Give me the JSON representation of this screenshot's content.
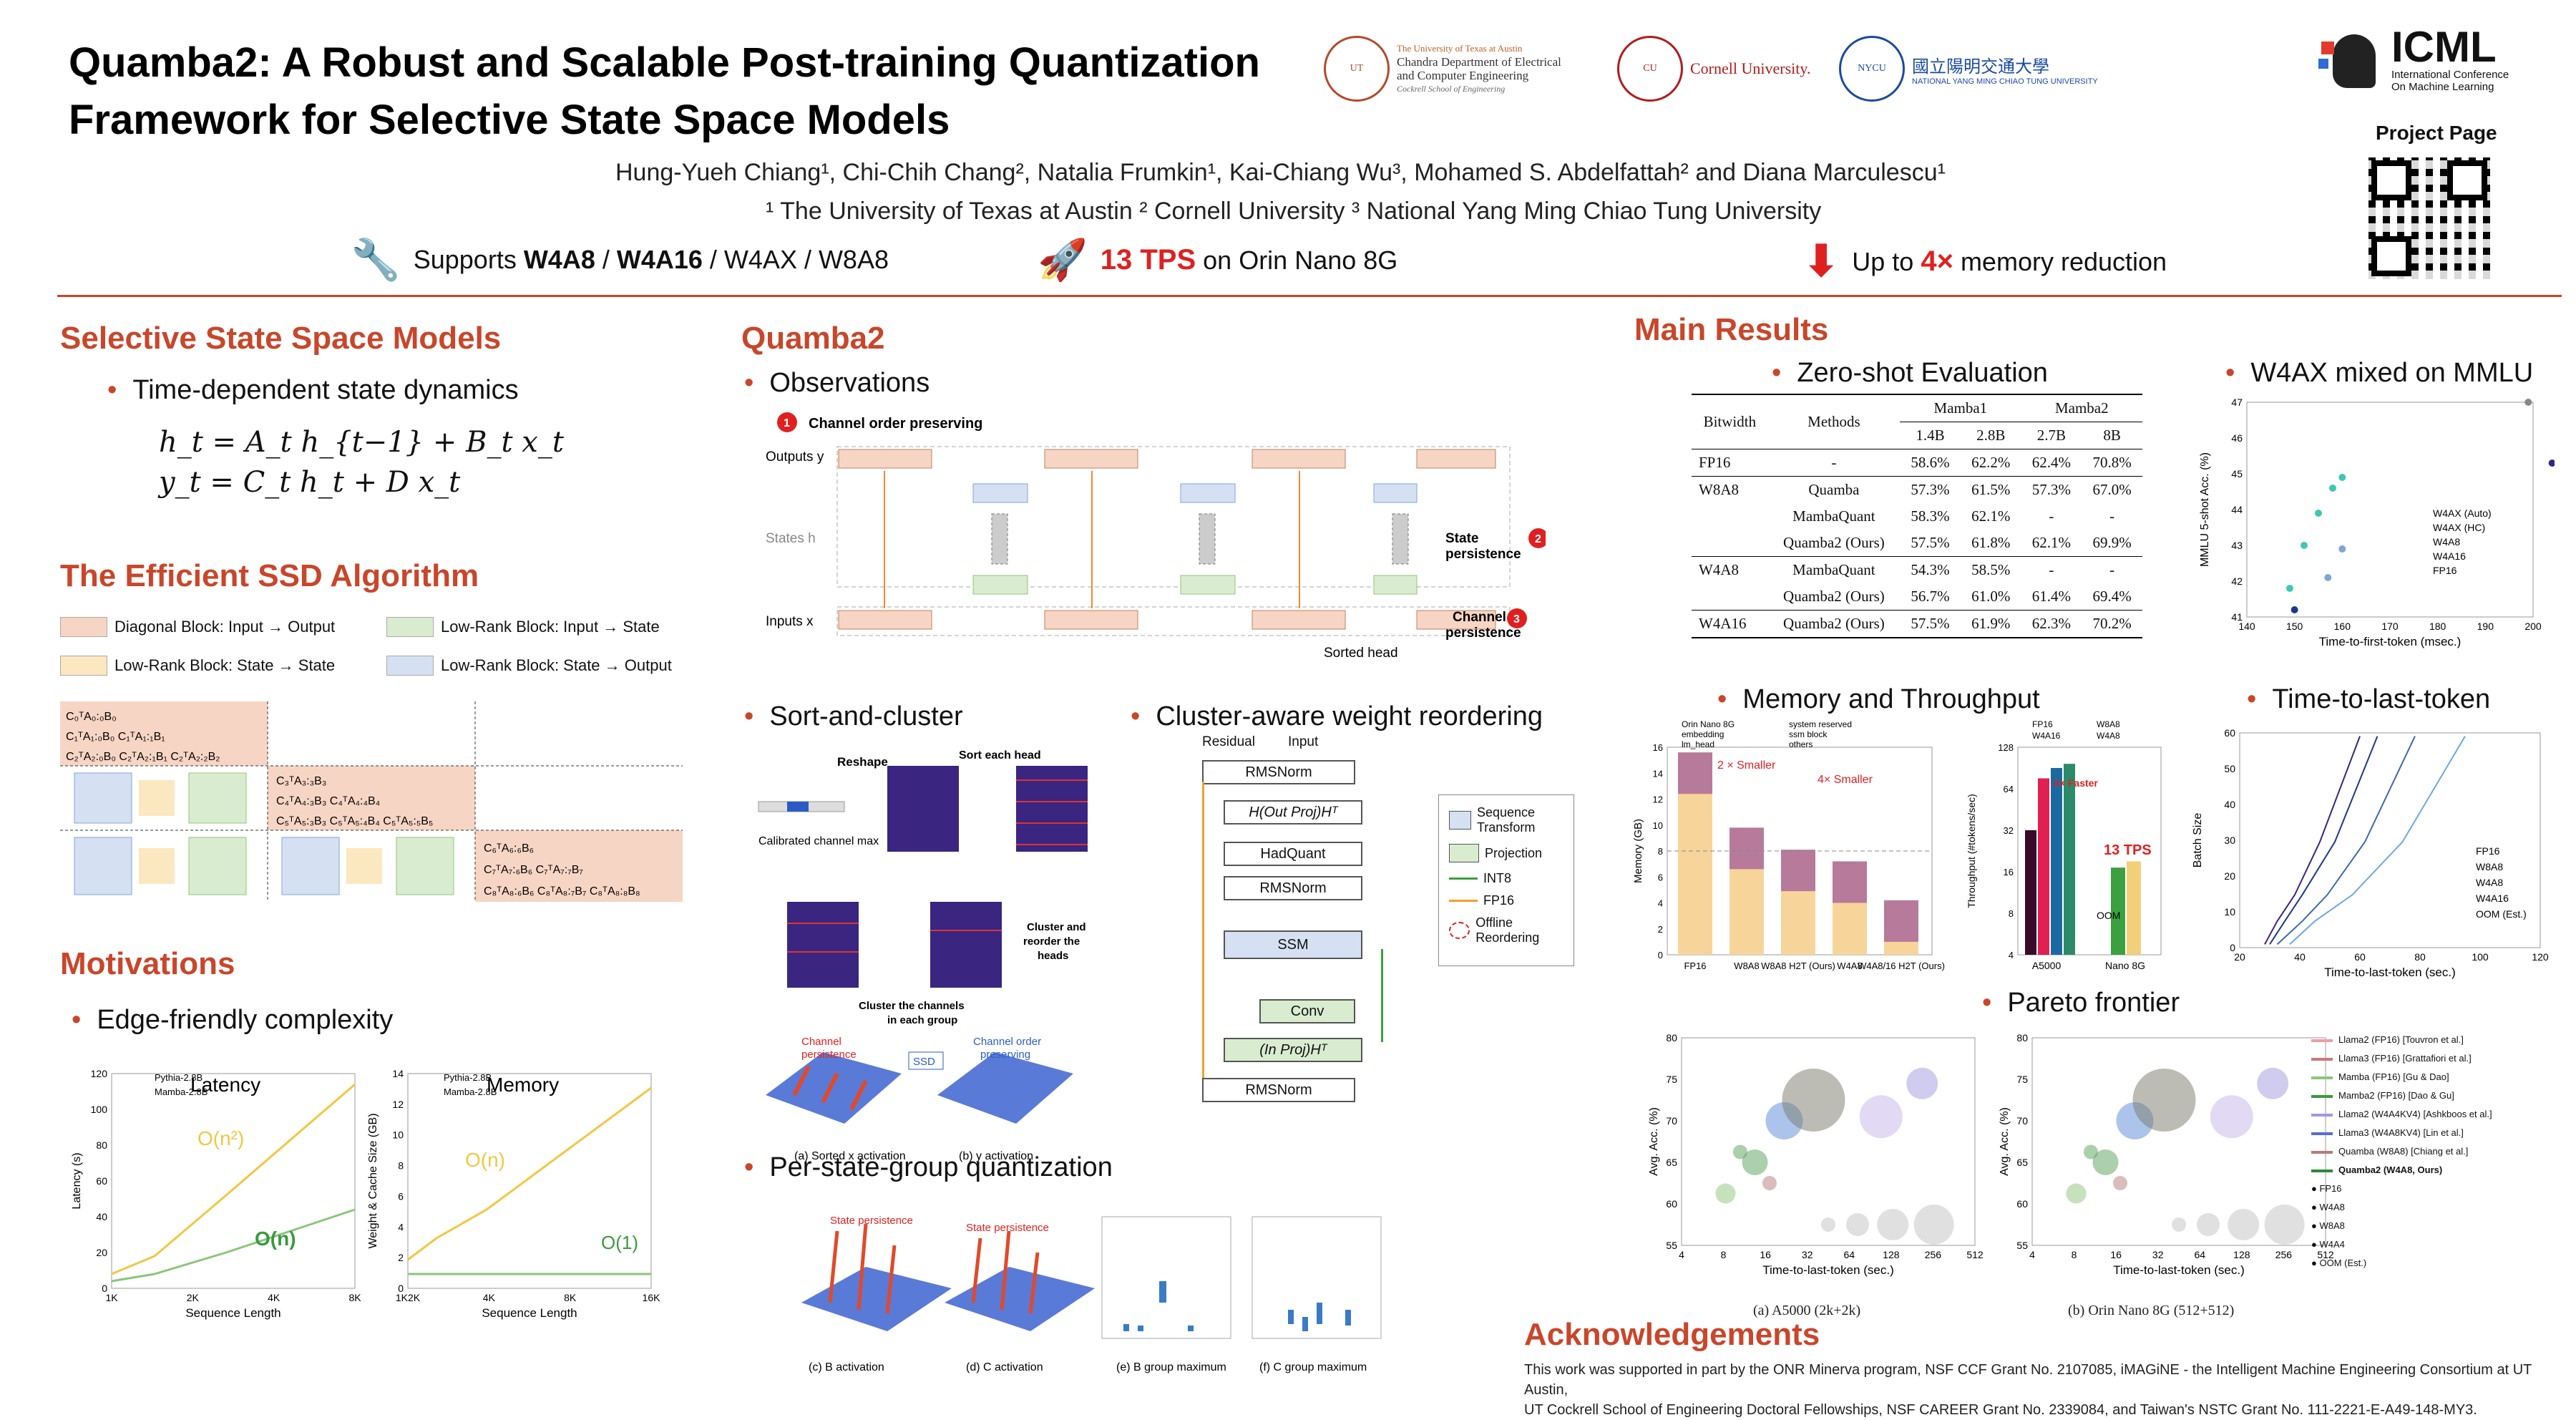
{
  "title": [
    "Quamba2: A Robust and Scalable Post-training Quantization",
    "Framework for Selective State Space Models"
  ],
  "authors": "Hung-Yueh Chiang¹, Chi-Chih Chang², Natalia Frumkin¹, Kai-Chiang Wu³, Mohamed S. Abdelfattah² and Diana Marculescu¹",
  "affiliations": "¹ The University of Texas at Austin ² Cornell University ³ National Yang Ming Chiao Tung University",
  "logos": {
    "ut": [
      "The University of Texas at Austin",
      "Chandra Department of Electrical",
      "and Computer Engineering",
      "Cockrell School of Engineering"
    ],
    "cornell": "Cornell University.",
    "nycu": [
      "國立陽明交通大學",
      "NATIONAL YANG MING CHIAO TUNG UNIVERSITY"
    ],
    "icml": [
      "ICML",
      "International Conference",
      "On Machine Learning"
    ]
  },
  "project_page": "Project Page",
  "features": {
    "supports_prefix": "Supports ",
    "w4a8": "W4A8",
    "sep": " / ",
    "w4a16": "W4A16",
    "rest": " / W4AX / W8A8",
    "tps": "13 TPS",
    "tps_rest": " on Orin Nano 8G",
    "up_to": "Up to ",
    "x4": "4×",
    "mem": " memory reduction"
  },
  "sections": {
    "ssm": "Selective State Space Models",
    "ssm_bullet": "Time-dependent state dynamics",
    "eq1": "h_t = A_t h_{t−1} + B_t x_t",
    "eq2": "y_t = C_t h_t + D x_t",
    "ssd": "The Efficient SSD Algorithm",
    "ssd_legend": [
      "Diagonal Block: Input → Output",
      "Low-Rank Block: Input → State",
      "Low-Rank Block: State → State",
      "Low-Rank Block: State → Output"
    ],
    "motivations": "Motivations",
    "edge": "Edge-friendly complexity",
    "quamba2": "Quamba2",
    "observations": "Observations",
    "obs_labels": [
      "Channel order preserving",
      "State persistence",
      "Channel persistence"
    ],
    "obs_axes": [
      "Outputs y",
      "States h",
      "Inputs x",
      "Sorted head"
    ],
    "sort_cluster": "Sort-and-cluster",
    "cluster_aware": "Cluster-aware weight reordering",
    "per_state": "Per-state-group quantization",
    "main_results": "Main Results",
    "zero_shot": "Zero-shot Evaluation",
    "w4ax": "W4AX mixed on MMLU",
    "mem_tp": "Memory and Throughput",
    "ttlt": "Time-to-last-token",
    "pareto": "Pareto frontier",
    "ack": "Acknowledgements"
  },
  "table": {
    "header1": [
      "Bitwidth",
      "Methods",
      "Mamba1",
      "Mamba2"
    ],
    "header2": [
      "1.4B",
      "2.8B",
      "2.7B",
      "8B"
    ],
    "rows": [
      [
        "FP16",
        "-",
        "58.6%",
        "62.2%",
        "62.4%",
        "70.8%"
      ],
      [
        "W8A8",
        "Quamba",
        "57.3%",
        "61.5%",
        "57.3%",
        "67.0%"
      ],
      [
        "",
        "MambaQuant",
        "58.3%",
        "62.1%",
        "-",
        "-"
      ],
      [
        "",
        "Quamba2 (Ours)",
        "57.5%",
        "61.8%",
        "62.1%",
        "69.9%"
      ],
      [
        "W4A8",
        "MambaQuant",
        "54.3%",
        "58.5%",
        "-",
        "-"
      ],
      [
        "",
        "Quamba2 (Ours)",
        "56.7%",
        "61.0%",
        "61.4%",
        "69.4%"
      ],
      [
        "W4A16",
        "Quamba2 (Ours)",
        "57.5%",
        "61.9%",
        "62.3%",
        "70.2%"
      ]
    ]
  },
  "arch": {
    "residual": "Residual",
    "input": "Input",
    "boxes": [
      "RMSNorm",
      "H(Out Proj)Hᵀ",
      "HadQuant",
      "RMSNorm",
      "SSM",
      "Conv",
      "(In Proj)Hᵀ",
      "RMSNorm"
    ],
    "legend": [
      "Sequence Transform",
      "Projection",
      "INT8",
      "FP16",
      "Offline Reordering"
    ]
  },
  "sort_labels": [
    "Reshape",
    "Sort each head",
    "Calibrated channel max",
    "Cluster and reorder the heads",
    "Cluster the channels in each group",
    "Channel persistence",
    "Channel order preserving",
    "SSD"
  ],
  "captions": [
    "(a) Sorted x activation",
    "(b) y activation",
    "(c) B activation",
    "(d) C activation",
    "(e) B group maximum",
    "(f) C group maximum",
    "(a) A5000 (2k+2k)",
    "(b) Orin Nano 8G (512+512)"
  ],
  "charts": {
    "latency": {
      "title": "Latency",
      "ylabel": "Latency (s)",
      "xlabel": "Sequence Length",
      "xticks": [
        "1K",
        "2K",
        "4K",
        "8K"
      ],
      "yticks": [
        "0",
        "20",
        "40",
        "60",
        "80",
        "100",
        "120"
      ],
      "series": [
        "Pythia-2.8B",
        "Mamba-2.8B"
      ],
      "note1": "O(n²)",
      "note2": "O(n)"
    },
    "memory": {
      "title": "Memory",
      "ylabel": "Weight & Cache Size (GB)",
      "xlabel": "Sequence Length",
      "xticks": [
        "1K2K",
        "4K",
        "8K",
        "16K"
      ],
      "yticks": [
        "0",
        "2",
        "4",
        "6",
        "8",
        "10",
        "12",
        "14"
      ],
      "series": [
        "Pythia-2.8B",
        "Mamba-2.8B"
      ],
      "note1": "O(n)",
      "note2": "O(1)"
    },
    "mmlu": {
      "xlabel": "Time-to-first-token (msec.)",
      "ylabel": "MMLU 5-shot Acc. (%)",
      "xticks": [
        "140",
        "150",
        "160",
        "170",
        "180",
        "190",
        "200"
      ],
      "yticks": [
        "41",
        "42",
        "43",
        "44",
        "45",
        "46",
        "47"
      ],
      "legend": [
        "W4AX (Auto)",
        "W4AX (HC)",
        "W4A8",
        "W4A16",
        "FP16"
      ]
    },
    "memtp": {
      "ylabel": "Memory (GB)",
      "y2label": "Throughput (#tokens/sec)",
      "xticks": [
        "FP16",
        "W8A8",
        "W8A8 H2T (Ours)",
        "W4A8",
        "W4A8/16 H2T (Ours)"
      ],
      "legend": [
        "Orin Nano 8G",
        "system reserved",
        "embedding",
        "ssm block",
        "lm_head",
        "others"
      ],
      "ann1": "2 × Smaller",
      "ann2": "4× Smaller",
      "tp_legend": [
        "FP16",
        "W8A8",
        "W4A16",
        "W4A8"
      ],
      "tp_x": [
        "A5000",
        "Nano 8G"
      ],
      "tps": "13 TPS",
      "oom": "OOM",
      "faster": "3× Faster"
    },
    "ttlt": {
      "xlabel": "Time-to-last-token (sec.)",
      "ylabel": "Batch Size",
      "xticks": [
        "20",
        "40",
        "60",
        "80",
        "100",
        "120"
      ],
      "yticks": [
        "0",
        "10",
        "20",
        "30",
        "40",
        "50",
        "60"
      ],
      "legend": [
        "FP16",
        "W8A8",
        "W4A8",
        "W4A16",
        "OOM (Est.)"
      ]
    },
    "pareto": {
      "xlabel": "Time-to-last-token (sec.)",
      "ylabel": "Avg. Acc. (%)",
      "xticks": [
        "4",
        "8",
        "16",
        "32",
        "64",
        "128",
        "256",
        "512"
      ],
      "yticks": [
        "55",
        "60",
        "65",
        "70",
        "75",
        "80"
      ],
      "legend": [
        "Llama2 (FP16) [Touvron et al.]",
        "Llama3 (FP16) [Grattafiori et al.]",
        "Mamba (FP16) [Gu & Dao]",
        "Mamba2 (FP16) [Dao & Gu]",
        "Llama2 (W4A4KV4) [Ashkboos et al.]",
        "Llama3 (W4A8KV4) [Lin et al.]",
        "Quamba (W8A8) [Chiang et al.]",
        "Quamba2 (W4A8, Ours)"
      ],
      "marker_legend": [
        "FP16",
        "W4A8",
        "W8A8",
        "W4A4",
        "OOM (Est.)"
      ]
    }
  },
  "acknowledgements": [
    "This work was supported in part by the ONR Minerva program, NSF CCF Grant No. 2107085, iMAGiNE - the Intelligent Machine Engineering Consortium at UT Austin,",
    "UT Cockrell School of Engineering Doctoral Fellowships, NSF CAREER Grant No. 2339084, and Taiwan's NSTC Grant No. 111-2221-E-A49-148-MY3."
  ],
  "colors": {
    "accent": "#c9462a",
    "orange": "#f2a869",
    "yellow": "#f2d07a",
    "green": "#8cc67a",
    "blue": "#7fa6d6"
  }
}
